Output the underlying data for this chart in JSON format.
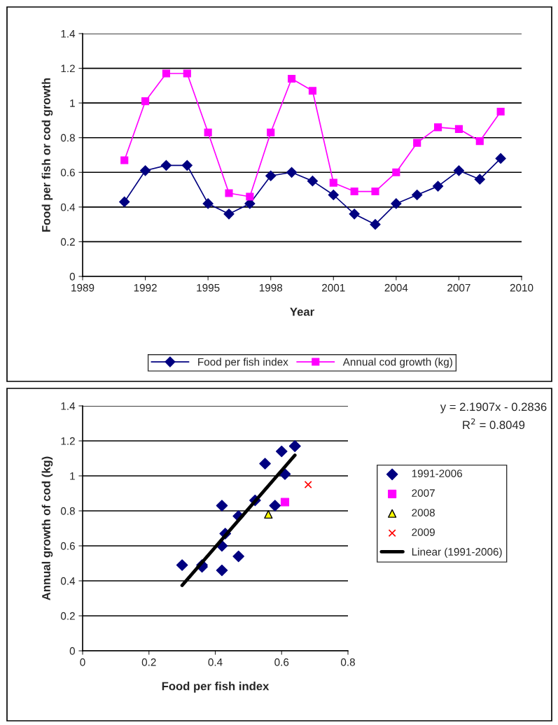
{
  "chart_data": [
    {
      "type": "line",
      "xlabel": "Year",
      "ylabel": "Food per fish or cod growth",
      "x": [
        1991,
        1992,
        1993,
        1994,
        1995,
        1996,
        1997,
        1998,
        1999,
        2000,
        2001,
        2002,
        2003,
        2004,
        2005,
        2006,
        2007,
        2008,
        2009
      ],
      "series": [
        {
          "name": "Food per fish index",
          "color": "#000080",
          "marker": "diamond",
          "values": [
            0.43,
            0.61,
            0.64,
            0.64,
            0.42,
            0.36,
            0.42,
            0.58,
            0.6,
            0.55,
            0.47,
            0.36,
            0.3,
            0.42,
            0.47,
            0.52,
            0.61,
            0.56,
            0.68
          ]
        },
        {
          "name": "Annual cod growth (kg)",
          "color": "#ff00ff",
          "marker": "square",
          "values": [
            0.67,
            1.01,
            1.17,
            1.17,
            0.83,
            0.48,
            0.46,
            0.83,
            1.14,
            1.07,
            0.54,
            0.49,
            0.49,
            0.6,
            0.77,
            0.86,
            0.85,
            0.78,
            0.95
          ]
        }
      ],
      "xlim": [
        1989,
        2010
      ],
      "xticks": [
        1989,
        1992,
        1995,
        1998,
        2001,
        2004,
        2007,
        2010
      ],
      "ylim": [
        0,
        1.4
      ],
      "yticks": [
        0,
        0.2,
        0.4,
        0.6,
        0.8,
        1,
        1.2,
        1.4
      ],
      "grid": "y",
      "legend": "bottom"
    },
    {
      "type": "scatter",
      "xlabel": "Food per fish index",
      "ylabel": "Annual growth of cod (kg)",
      "series": [
        {
          "name": "1991-2006",
          "color": "#000080",
          "marker": "diamond",
          "x": [
            0.43,
            0.61,
            0.64,
            0.64,
            0.42,
            0.36,
            0.42,
            0.58,
            0.6,
            0.55,
            0.47,
            0.36,
            0.3,
            0.42,
            0.47,
            0.52
          ],
          "values": [
            0.67,
            1.01,
            1.17,
            1.17,
            0.83,
            0.48,
            0.46,
            0.83,
            1.14,
            1.07,
            0.54,
            0.49,
            0.49,
            0.6,
            0.77,
            0.86
          ]
        },
        {
          "name": "2007",
          "color": "#ff00ff",
          "marker": "square",
          "x": [
            0.61
          ],
          "values": [
            0.85
          ]
        },
        {
          "name": "2008",
          "color": "#ffff00",
          "marker": "triangle",
          "x": [
            0.56
          ],
          "values": [
            0.78
          ]
        },
        {
          "name": "2009",
          "color": "#ff0000",
          "marker": "cross",
          "x": [
            0.68
          ],
          "values": [
            0.95
          ]
        },
        {
          "name": "Linear (1991-2006)",
          "type": "line",
          "color": "#000000",
          "marker": "none",
          "x": [
            0.3,
            0.64
          ],
          "values": [
            0.374,
            1.118
          ]
        }
      ],
      "annotations": [
        "y = 2.1907x - 0.2836",
        "R$^{2}$ = 0.8049"
      ],
      "xlim": [
        0,
        0.8
      ],
      "xticks": [
        0,
        0.2,
        0.4,
        0.6,
        0.8
      ],
      "ylim": [
        0,
        1.4
      ],
      "yticks": [
        0,
        0.2,
        0.4,
        0.6,
        0.8,
        1,
        1.2,
        1.4
      ],
      "grid": "y",
      "legend": "right"
    }
  ]
}
